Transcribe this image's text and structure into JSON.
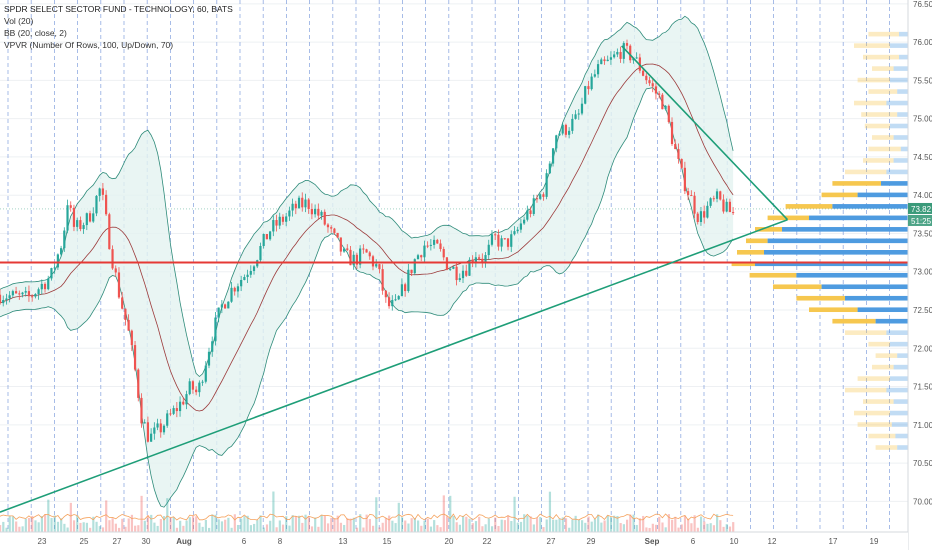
{
  "legend": {
    "title": "SPDR SELECT SECTOR FUND - TECHNOLOGY, 60, BATS",
    "vol": "Vol (20)",
    "bb": "BB (20, close, 2)",
    "vpvr": "VPVR (Number Of Rows, 100, Up/Down, 70)"
  },
  "colors": {
    "up": "#26a69a",
    "down": "#ef5350",
    "bb_line": "#2e8b7a",
    "bb_fill": "#e3f2f0",
    "bb_basis": "#9c3b3b",
    "trend": "#1e9e78",
    "support": "#e53935",
    "grid_dashed": "#6d8fd8",
    "vp_up": "#4e9be0",
    "vp_down": "#f6c74f",
    "price_tag": "#3a9a7a"
  },
  "chart_data": {
    "type": "candlestick",
    "x_ticks": [
      "23",
      "25",
      "27",
      "30",
      "Aug",
      "6",
      "8",
      "13",
      "15",
      "20",
      "22",
      "27",
      "29",
      "Sep",
      "6",
      "10",
      "12",
      "17",
      "19"
    ],
    "y_ticks": [
      70.0,
      70.5,
      71.0,
      71.5,
      72.0,
      72.5,
      73.0,
      73.5,
      74.0,
      74.5,
      75.0,
      75.5,
      76.0,
      76.5
    ],
    "ylim": [
      69.6,
      76.55
    ],
    "last_price": "73.82",
    "countdown": "51:25",
    "support_level": 73.12,
    "trendline_rising": [
      [
        0,
        69.86
      ],
      [
        0.845,
        73.68
      ]
    ],
    "trendline_falling": [
      [
        0.667,
        75.95
      ],
      [
        0.845,
        73.68
      ]
    ],
    "price_path": [
      [
        0.0,
        72.7
      ],
      [
        0.03,
        72.65
      ],
      [
        0.055,
        72.95
      ],
      [
        0.068,
        73.45
      ],
      [
        0.072,
        73.95
      ],
      [
        0.08,
        73.55
      ],
      [
        0.095,
        73.7
      ],
      [
        0.108,
        74.1
      ],
      [
        0.12,
        73.2
      ],
      [
        0.128,
        72.7
      ],
      [
        0.138,
        72.2
      ],
      [
        0.145,
        71.7
      ],
      [
        0.152,
        71.1
      ],
      [
        0.16,
        70.82
      ],
      [
        0.172,
        70.95
      ],
      [
        0.185,
        71.15
      ],
      [
        0.195,
        71.3
      ],
      [
        0.205,
        71.5
      ],
      [
        0.212,
        71.4
      ],
      [
        0.22,
        71.8
      ],
      [
        0.228,
        72.2
      ],
      [
        0.238,
        72.55
      ],
      [
        0.25,
        72.8
      ],
      [
        0.262,
        72.95
      ],
      [
        0.275,
        73.2
      ],
      [
        0.29,
        73.55
      ],
      [
        0.305,
        73.7
      ],
      [
        0.318,
        73.85
      ],
      [
        0.33,
        73.9
      ],
      [
        0.345,
        73.7
      ],
      [
        0.36,
        73.4
      ],
      [
        0.37,
        73.2
      ],
      [
        0.38,
        73.15
      ],
      [
        0.392,
        73.25
      ],
      [
        0.405,
        73.05
      ],
      [
        0.415,
        72.55
      ],
      [
        0.425,
        72.55
      ],
      [
        0.435,
        72.85
      ],
      [
        0.445,
        73.15
      ],
      [
        0.455,
        73.35
      ],
      [
        0.47,
        73.3
      ],
      [
        0.48,
        73.1
      ],
      [
        0.49,
        73.0
      ],
      [
        0.5,
        73.05
      ],
      [
        0.51,
        73.25
      ],
      [
        0.52,
        73.15
      ],
      [
        0.53,
        73.45
      ],
      [
        0.54,
        73.35
      ],
      [
        0.552,
        73.45
      ],
      [
        0.562,
        73.7
      ],
      [
        0.572,
        73.85
      ],
      [
        0.585,
        74.1
      ],
      [
        0.595,
        74.8
      ],
      [
        0.605,
        74.85
      ],
      [
        0.62,
        75.0
      ],
      [
        0.63,
        75.4
      ],
      [
        0.642,
        75.65
      ],
      [
        0.655,
        75.75
      ],
      [
        0.667,
        75.9
      ],
      [
        0.68,
        75.8
      ],
      [
        0.69,
        75.6
      ],
      [
        0.7,
        75.4
      ],
      [
        0.712,
        75.2
      ],
      [
        0.722,
        74.7
      ],
      [
        0.73,
        74.3
      ],
      [
        0.74,
        74.0
      ],
      [
        0.75,
        73.7
      ],
      [
        0.76,
        73.85
      ],
      [
        0.77,
        73.95
      ],
      [
        0.78,
        73.8
      ],
      [
        0.79,
        73.75
      ]
    ],
    "volume_profile": [
      [
        76.1,
        0.22,
        0.05
      ],
      [
        75.95,
        0.3,
        0.1
      ],
      [
        75.8,
        0.25,
        0.05
      ],
      [
        75.65,
        0.2,
        0.08
      ],
      [
        75.5,
        0.28,
        0.1
      ],
      [
        75.35,
        0.22,
        0.06
      ],
      [
        75.2,
        0.3,
        0.12
      ],
      [
        75.05,
        0.26,
        0.06
      ],
      [
        74.9,
        0.24,
        0.1
      ],
      [
        74.75,
        0.2,
        0.08
      ],
      [
        74.6,
        0.22,
        0.04
      ],
      [
        74.45,
        0.25,
        0.08
      ],
      [
        74.3,
        0.35,
        0.12
      ],
      [
        74.15,
        0.42,
        0.15
      ],
      [
        74.0,
        0.48,
        0.28
      ],
      [
        73.85,
        0.68,
        0.42
      ],
      [
        73.7,
        0.78,
        0.55
      ],
      [
        73.55,
        0.85,
        0.7
      ],
      [
        73.4,
        0.9,
        0.78
      ],
      [
        73.25,
        0.95,
        0.8
      ],
      [
        73.1,
        0.98,
        0.85
      ],
      [
        72.95,
        0.88,
        0.62
      ],
      [
        72.8,
        0.75,
        0.48
      ],
      [
        72.65,
        0.62,
        0.35
      ],
      [
        72.5,
        0.55,
        0.28
      ],
      [
        72.35,
        0.42,
        0.18
      ],
      [
        72.2,
        0.35,
        0.12
      ],
      [
        72.05,
        0.22,
        0.1
      ],
      [
        71.9,
        0.18,
        0.06
      ],
      [
        71.75,
        0.2,
        0.08
      ],
      [
        71.6,
        0.28,
        0.1
      ],
      [
        71.45,
        0.35,
        0.12
      ],
      [
        71.3,
        0.25,
        0.08
      ],
      [
        71.15,
        0.3,
        0.1
      ],
      [
        71.0,
        0.28,
        0.09
      ],
      [
        70.85,
        0.22,
        0.07
      ],
      [
        70.7,
        0.18,
        0.06
      ]
    ]
  }
}
